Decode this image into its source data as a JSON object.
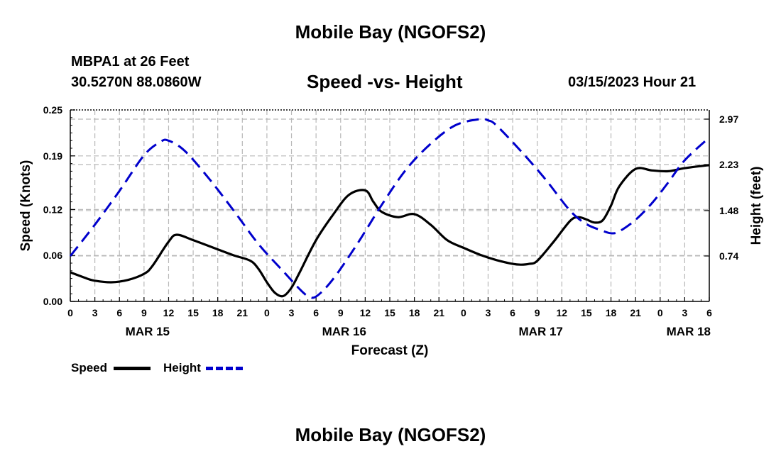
{
  "header": {
    "title": "Mobile Bay (NGOFS2)",
    "station": "MBPA1 at 26 Feet",
    "coords": "30.5270N  88.0860W",
    "subtitle": "Speed -vs- Height",
    "datetime": "03/15/2023 Hour 21"
  },
  "footer": {
    "title": "Mobile Bay (NGOFS2)"
  },
  "legend": {
    "speed_label": "Speed",
    "height_label": "Height"
  },
  "colors": {
    "speed": "#000000",
    "height": "#0000cc",
    "grid": "#b8b8b8"
  },
  "chart_data": {
    "type": "line",
    "xlabel": "Forecast (Z)",
    "ylabel": "Speed (Knots)",
    "y2label": "Height (feet)",
    "x_range_hours": [
      0,
      78
    ],
    "x_tick_hours": [
      0,
      3,
      6,
      9,
      12,
      15,
      18,
      21,
      24,
      27,
      30,
      33,
      36,
      39,
      42,
      45,
      48,
      51,
      54,
      57,
      60,
      63,
      66,
      69,
      72,
      75,
      78
    ],
    "x_tick_labels": [
      "0",
      "3",
      "6",
      "9",
      "12",
      "15",
      "18",
      "21",
      "0",
      "3",
      "6",
      "9",
      "12",
      "15",
      "18",
      "21",
      "0",
      "3",
      "6",
      "9",
      "12",
      "15",
      "18",
      "21",
      "0",
      "3",
      "6"
    ],
    "date_labels": [
      {
        "hour": 9,
        "text": "MAR 15"
      },
      {
        "hour": 33,
        "text": "MAR 16"
      },
      {
        "hour": 57,
        "text": "MAR 17"
      },
      {
        "hour": 78,
        "text": "MAR 18"
      }
    ],
    "ylim": [
      0,
      0.25
    ],
    "y_ticks": [
      0.0,
      0.06,
      0.12,
      0.19,
      0.25
    ],
    "y_tick_labels": [
      "0.00",
      "0.06",
      "0.12",
      "0.19",
      "0.25"
    ],
    "y2lim": [
      0,
      3.12
    ],
    "y2_ticks": [
      0.74,
      1.48,
      2.23,
      2.97
    ],
    "y2_tick_labels": [
      "0.74",
      "1.48",
      "2.23",
      "2.97"
    ],
    "grid": true,
    "legend_position": "bottom-left",
    "series": [
      {
        "name": "Speed",
        "axis": "left",
        "style": "solid",
        "x": [
          0,
          2,
          3,
          5,
          7,
          9,
          10,
          12,
          13,
          15,
          18,
          20,
          22,
          23,
          24,
          25,
          26,
          27,
          28,
          30,
          32,
          34,
          36,
          37,
          38,
          40,
          42,
          44,
          46,
          48,
          50,
          52,
          54,
          55,
          56,
          57,
          59,
          61,
          62,
          63,
          64,
          65,
          66,
          67,
          69,
          71,
          73,
          75,
          78
        ],
        "y": [
          0.038,
          0.03,
          0.027,
          0.025,
          0.028,
          0.036,
          0.046,
          0.078,
          0.087,
          0.08,
          0.068,
          0.06,
          0.053,
          0.042,
          0.025,
          0.011,
          0.007,
          0.018,
          0.038,
          0.08,
          0.112,
          0.139,
          0.145,
          0.13,
          0.117,
          0.11,
          0.114,
          0.1,
          0.08,
          0.07,
          0.061,
          0.054,
          0.049,
          0.048,
          0.049,
          0.053,
          0.078,
          0.105,
          0.11,
          0.107,
          0.103,
          0.106,
          0.125,
          0.15,
          0.173,
          0.171,
          0.17,
          0.174,
          0.178
        ]
      },
      {
        "name": "Height",
        "axis": "right",
        "style": "dashed",
        "x": [
          0,
          3,
          6,
          9,
          11,
          12,
          14,
          17,
          20,
          23,
          26,
          28,
          29,
          30,
          32,
          35,
          38,
          41,
          44,
          47,
          50,
          51,
          52,
          55,
          58,
          61,
          63,
          65,
          66,
          67,
          69,
          71,
          73,
          75,
          78
        ],
        "y": [
          0.74,
          1.25,
          1.8,
          2.38,
          2.6,
          2.62,
          2.45,
          1.99,
          1.47,
          0.93,
          0.49,
          0.2,
          0.09,
          0.08,
          0.35,
          0.93,
          1.57,
          2.15,
          2.57,
          2.87,
          2.97,
          2.95,
          2.87,
          2.45,
          1.99,
          1.48,
          1.26,
          1.15,
          1.11,
          1.14,
          1.33,
          1.6,
          1.94,
          2.3,
          2.67
        ]
      }
    ]
  }
}
